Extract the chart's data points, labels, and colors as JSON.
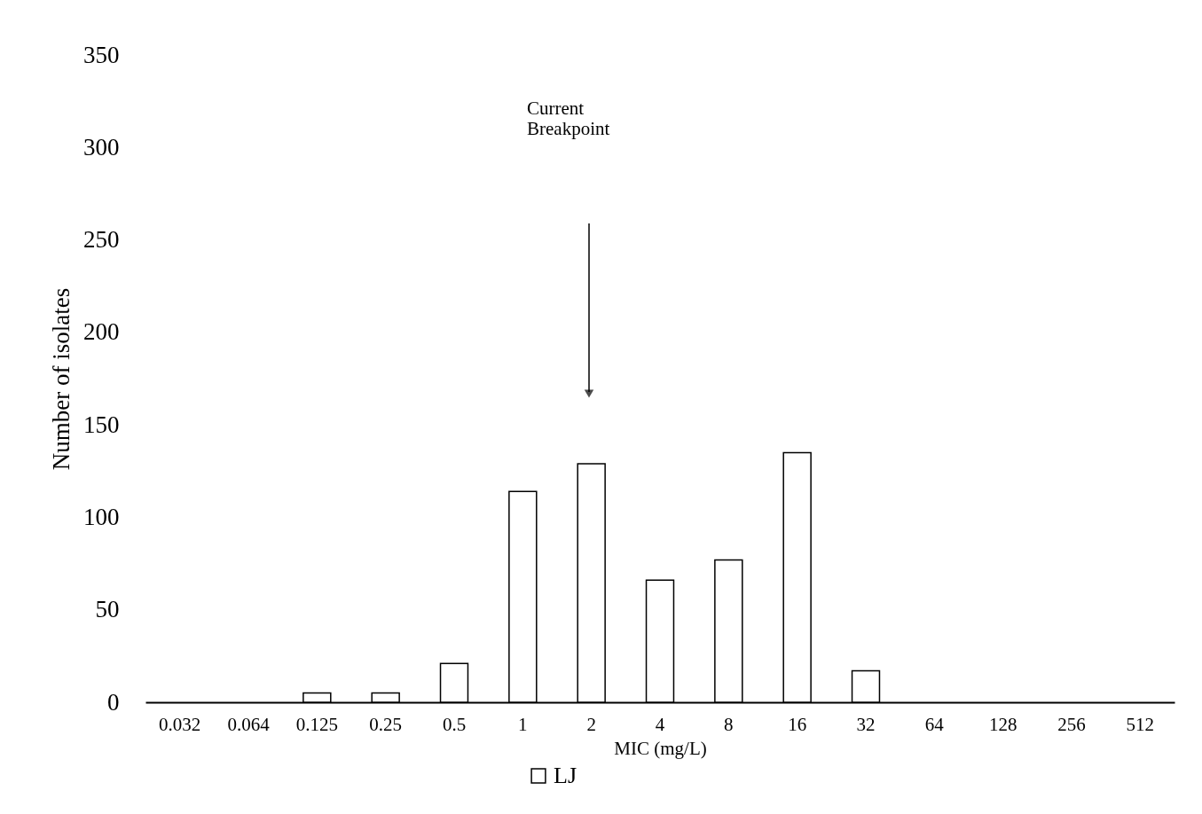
{
  "chart_data": {
    "type": "bar",
    "xlabel": "MIC (mg/L)",
    "ylabel": "Number of isolates",
    "categories": [
      "0.032",
      "0.064",
      "0.125",
      "0.25",
      "0.5",
      "1",
      "2",
      "4",
      "8",
      "16",
      "32",
      "64",
      "128",
      "256",
      "512"
    ],
    "series": [
      {
        "name": "LJ",
        "color": "#ffffff",
        "values": [
          0,
          0,
          5,
          5,
          21,
          114,
          129,
          66,
          77,
          135,
          17,
          0,
          0,
          0,
          0
        ]
      }
    ],
    "ylim": [
      0,
      350
    ],
    "yticks": [
      0,
      50,
      100,
      150,
      200,
      250,
      300,
      350
    ],
    "annotations": [
      "Current Breakpoint"
    ],
    "legend": "bottom"
  }
}
